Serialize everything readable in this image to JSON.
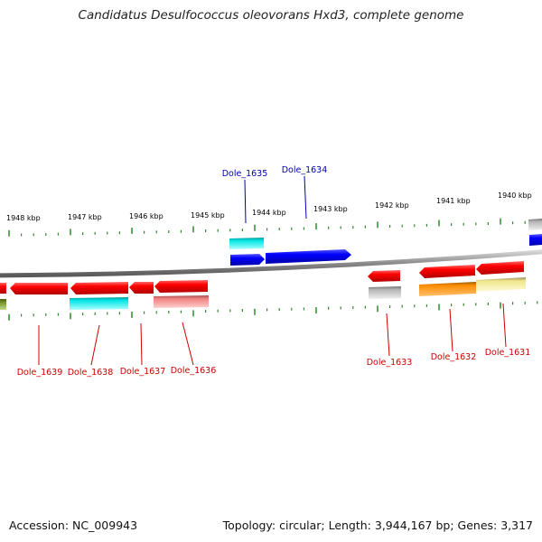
{
  "title": "Candidatus Desulfococcus oleovorans Hxd3, complete genome",
  "footer": {
    "accession": "Accession: NC_009943",
    "summary": "Topology: circular; Length: 3,944,167 bp; Genes: 3,317"
  },
  "scale_labels": [
    "1948 kbp",
    "1947 kbp",
    "1946 kbp",
    "1945 kbp",
    "1944 kbp",
    "1943 kbp",
    "1942 kbp",
    "1941 kbp",
    "1940 kbp"
  ],
  "genes": [
    {
      "name": "Dole_1635",
      "strand": "+",
      "color": "#0000ff"
    },
    {
      "name": "Dole_1634",
      "strand": "+",
      "color": "#0000ff"
    },
    {
      "name": "Dole_1639",
      "strand": "-",
      "color": "#ff0000"
    },
    {
      "name": "Dole_1638",
      "strand": "-",
      "color": "#ff0000"
    },
    {
      "name": "Dole_1637",
      "strand": "-",
      "color": "#ff0000"
    },
    {
      "name": "Dole_1636",
      "strand": "-",
      "color": "#ff0000"
    },
    {
      "name": "Dole_1633",
      "strand": "-",
      "color": "#ff0000"
    },
    {
      "name": "Dole_1632",
      "strand": "-",
      "color": "#ff0000"
    },
    {
      "name": "Dole_1631",
      "strand": "-",
      "color": "#ff0000"
    }
  ],
  "colors": {
    "forward_label": "#0000aa",
    "reverse_label": "#cc0000",
    "tick": "#2e8b2e",
    "backbone": "#8a8a8a",
    "cog_cyan": "#00e5e5",
    "cog_pink": "#f08080",
    "cog_grey": "#b5b5b5",
    "cog_orange": "#ff8c00",
    "cog_khaki": "#f0e68c",
    "cog_olive": "#7a9a2a"
  }
}
